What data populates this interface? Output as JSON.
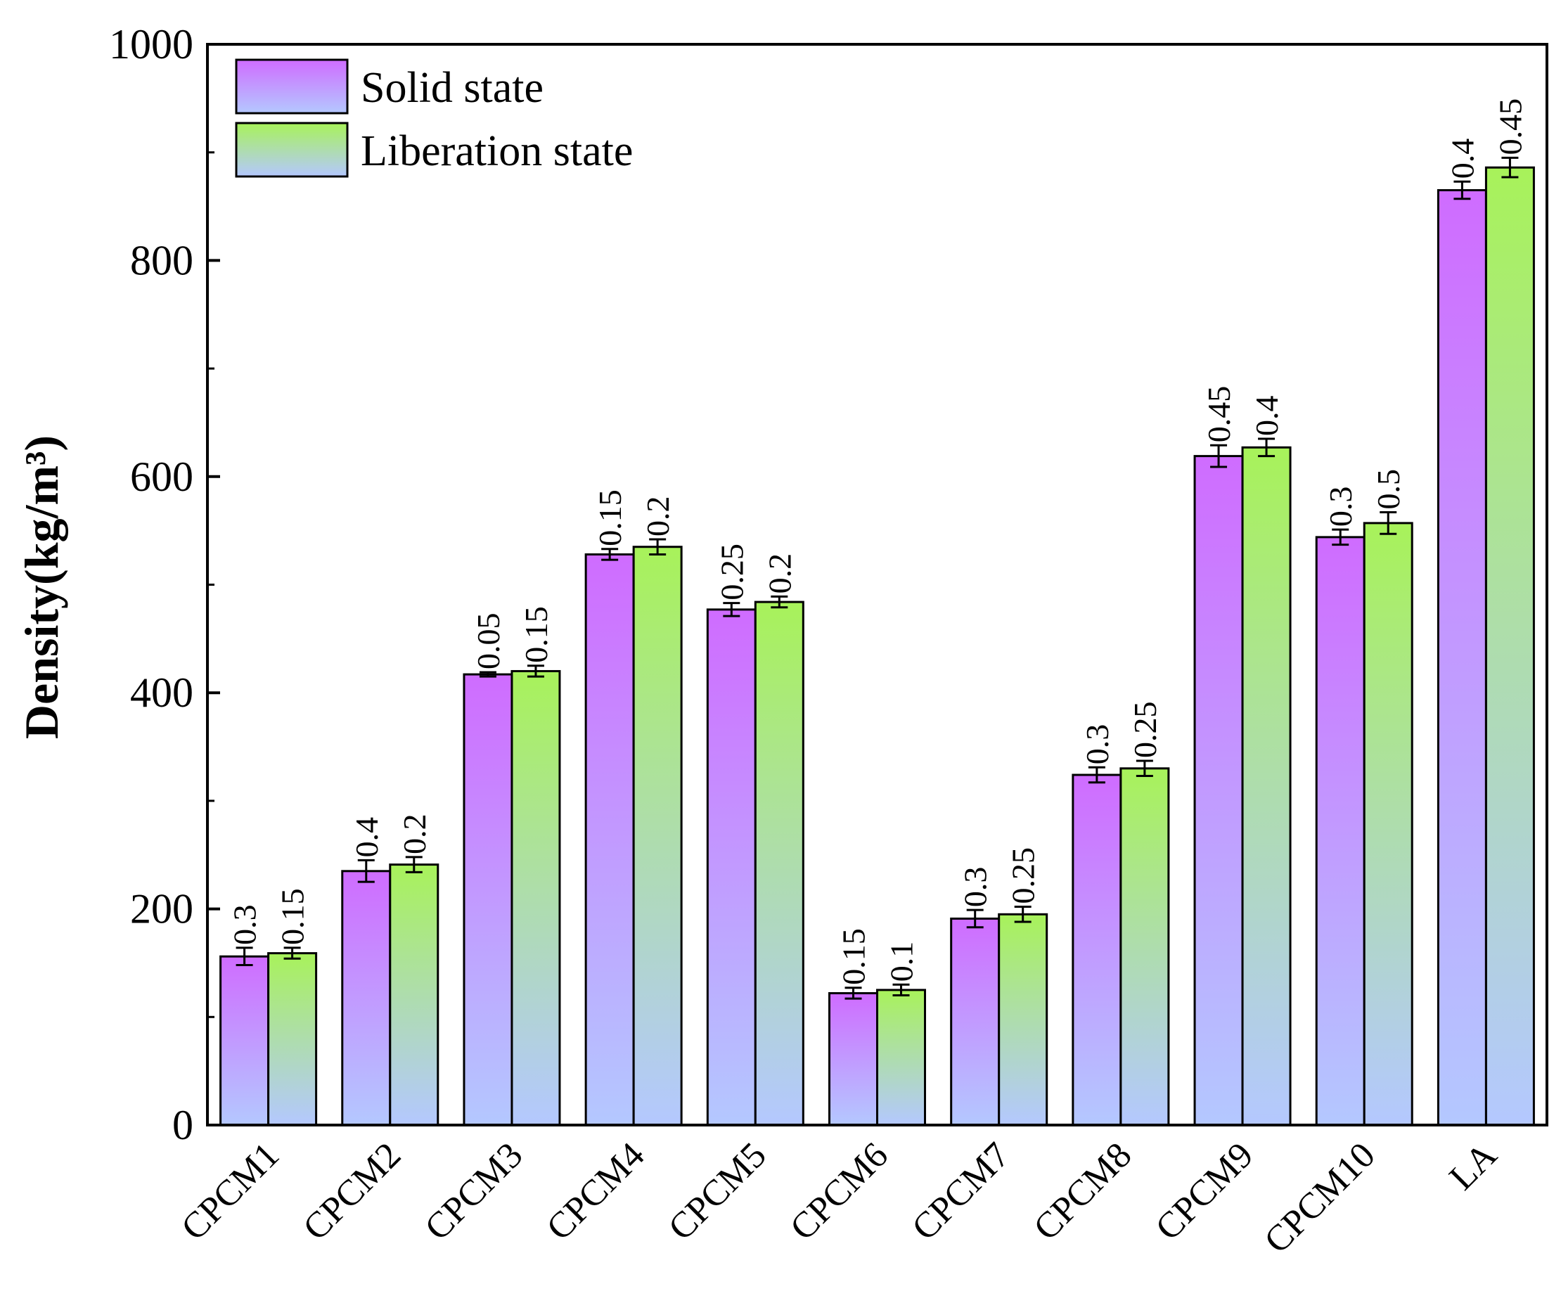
{
  "chart_data": {
    "type": "bar",
    "title": "",
    "xlabel": "",
    "ylabel": "Density(kg/m³)",
    "ylim": [
      0,
      1000
    ],
    "yticks": [
      0,
      200,
      400,
      600,
      800,
      1000
    ],
    "grid": false,
    "legend_position": "top-left",
    "categories": [
      "CPCM1",
      "CPCM2",
      "CPCM3",
      "CPCM4",
      "CPCM5",
      "CPCM6",
      "CPCM7",
      "CPCM8",
      "CPCM9",
      "CPCM10",
      "LA"
    ],
    "series": [
      {
        "name": "Solid state",
        "values": [
          156,
          235,
          417,
          528,
          477,
          122,
          191,
          324,
          619,
          544,
          865
        ],
        "errors": [
          8,
          10,
          2,
          5,
          6,
          5,
          8,
          7,
          10,
          7,
          8
        ],
        "labels": [
          "0.3",
          "0.4",
          "0.05",
          "0.15",
          "0.25",
          "0.15",
          "0.3",
          "0.3",
          "0.45",
          "0.3",
          "0.4"
        ],
        "gradient_top": "#cf6cff",
        "gradient_bottom": "#b4c8ff"
      },
      {
        "name": "Liberation state",
        "values": [
          159,
          241,
          420,
          535,
          484,
          125,
          195,
          330,
          627,
          557,
          886
        ],
        "errors": [
          5,
          7,
          5,
          7,
          5,
          5,
          7,
          7,
          8,
          10,
          9
        ],
        "labels": [
          "0.15",
          "0.2",
          "0.15",
          "0.2",
          "0.2",
          "0.1",
          "0.25",
          "0.25",
          "0.4",
          "0.5",
          "0.45"
        ],
        "gradient_top": "#a8f25a",
        "gradient_bottom": "#b4c8ff"
      }
    ]
  }
}
